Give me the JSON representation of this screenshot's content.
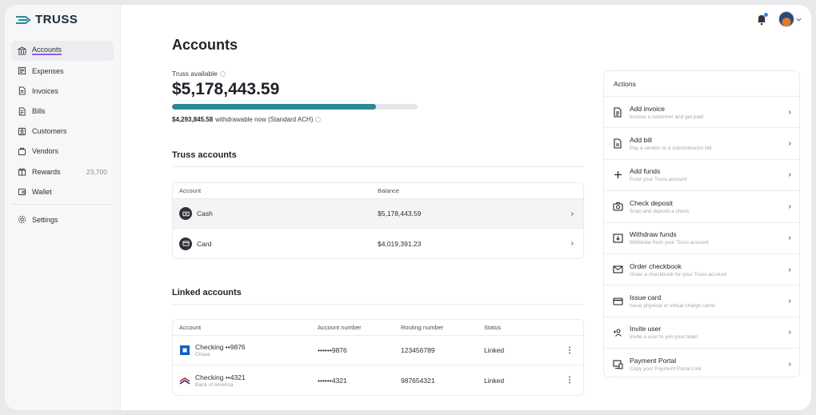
{
  "brand": {
    "name": "TRUSS"
  },
  "sidebar": {
    "items": [
      {
        "label": "Accounts",
        "icon": "bank-icon",
        "active": true
      },
      {
        "label": "Expenses",
        "icon": "receipt-icon"
      },
      {
        "label": "Invoices",
        "icon": "invoice-icon"
      },
      {
        "label": "Bills",
        "icon": "bill-icon"
      },
      {
        "label": "Customers",
        "icon": "customers-icon"
      },
      {
        "label": "Vendors",
        "icon": "vendors-icon"
      },
      {
        "label": "Rewards",
        "icon": "rewards-icon",
        "count": "23,700"
      },
      {
        "label": "Wallet",
        "icon": "wallet-icon"
      }
    ],
    "settings": {
      "label": "Settings",
      "icon": "gear-icon"
    }
  },
  "page": {
    "title": "Accounts",
    "available_label": "Truss available",
    "available_amount": "$5,178,443.59",
    "progress_fraction": 0.83,
    "withdrawable_amount": "$4,293,845.58",
    "withdrawable_text": "withdrawable now (Standard ACH)"
  },
  "truss_accounts": {
    "title": "Truss accounts",
    "columns": {
      "account": "Account",
      "balance": "Balance"
    },
    "rows": [
      {
        "name": "Cash",
        "balance": "$5,178,443.59"
      },
      {
        "name": "Card",
        "balance": "$4,019,391.23"
      }
    ]
  },
  "linked_accounts": {
    "title": "Linked accounts",
    "columns": {
      "account": "Account",
      "account_number": "Account number",
      "routing_number": "Routing number",
      "status": "Status"
    },
    "rows": [
      {
        "name": "Checking ••9876",
        "bank": "Chase",
        "account_number": "••••••9876",
        "routing_number": "123456789",
        "status": "Linked",
        "color": "#1161b8"
      },
      {
        "name": "Checking ••4321",
        "bank": "Bank of America",
        "account_number": "••••••4321",
        "routing_number": "987654321",
        "status": "Linked",
        "color": "#c8202f"
      }
    ]
  },
  "actions": {
    "title": "Actions",
    "items": [
      {
        "title": "Add invoice",
        "desc": "Invoice a customer and get paid",
        "icon": "invoice-icon"
      },
      {
        "title": "Add bill",
        "desc": "Pay a vendor or a subcontractor bill",
        "icon": "bill-icon"
      },
      {
        "title": "Add funds",
        "desc": "Fund your Truss account",
        "icon": "plus-icon"
      },
      {
        "title": "Check deposit",
        "desc": "Scan and deposit a check",
        "icon": "camera-icon"
      },
      {
        "title": "Withdraw funds",
        "desc": "Withdraw from your Truss account",
        "icon": "withdraw-icon"
      },
      {
        "title": "Order checkbook",
        "desc": "Order a checkbook for your Truss account",
        "icon": "mail-icon"
      },
      {
        "title": "Issue card",
        "desc": "Issue physical or virtual charge cards",
        "icon": "card-icon"
      },
      {
        "title": "Invite user",
        "desc": "Invite a user to join your team",
        "icon": "invite-user-icon"
      },
      {
        "title": "Payment Portal",
        "desc": "Copy your Payment Portal Link",
        "icon": "portal-icon"
      }
    ]
  },
  "colors": {
    "accent": "#2b8a94",
    "underline": "#8b5cf6"
  }
}
